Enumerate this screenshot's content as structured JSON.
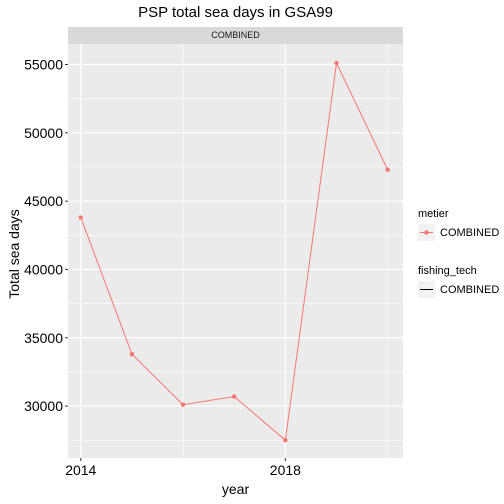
{
  "chart_data": {
    "type": "line",
    "title": "PSP total sea days in GSA99",
    "facet_label": "COMBINED",
    "xlabel": "year",
    "ylabel": "Total sea days",
    "x": [
      2014,
      2015,
      2016,
      2017,
      2018,
      2019,
      2020
    ],
    "x_ticks": [
      2014,
      2018
    ],
    "x_tick_labels": [
      "2014",
      "2018"
    ],
    "xlim": [
      2013.75,
      2020.3
    ],
    "y_ticks": [
      30000,
      35000,
      40000,
      45000,
      50000,
      55000
    ],
    "y_tick_labels": [
      "30000",
      "35000",
      "40000",
      "45000",
      "50000",
      "55000"
    ],
    "ylim": [
      26200,
      56500
    ],
    "grid": true,
    "series": [
      {
        "name": "COMBINED",
        "color": "#f8766d",
        "values": [
          43800,
          33800,
          30100,
          30700,
          27500,
          55100,
          47300
        ]
      }
    ],
    "legend": {
      "position": "right",
      "groups": [
        {
          "title": "metier",
          "label": "COMBINED",
          "key": "point-line",
          "color": "#f8766d"
        },
        {
          "title": "fishing_tech",
          "label": "COMBINED",
          "key": "line",
          "color": "#000000"
        }
      ]
    }
  }
}
